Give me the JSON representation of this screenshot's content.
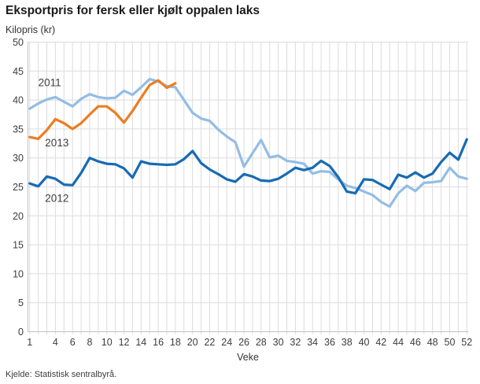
{
  "chart_data": {
    "type": "line",
    "title": "Eksportpris for fersk eller kjølt oppalen laks",
    "ylabel": "Kilopris (kr)",
    "xlabel": "Veke",
    "source": "Kjelde: Statistisk sentralbyrå.",
    "ylim": [
      0,
      50
    ],
    "yticks": [
      0,
      5,
      10,
      15,
      20,
      25,
      30,
      35,
      40,
      45,
      50
    ],
    "xlim": [
      1,
      52
    ],
    "xticks": [
      1,
      4,
      6,
      8,
      10,
      12,
      14,
      16,
      18,
      20,
      22,
      24,
      26,
      28,
      30,
      32,
      34,
      36,
      38,
      40,
      42,
      44,
      46,
      48,
      50,
      52
    ],
    "grid": true,
    "legend_position": "inline-labels",
    "colors": {
      "2011": "#94bde4",
      "2012": "#176bb4",
      "2013": "#ec7d23",
      "gridline": "#dcdcdc",
      "axis": "#c2c2c2",
      "tick_text": "#3d3d3d"
    },
    "series": [
      {
        "name": "2011",
        "color_key": "2011",
        "weeks_start": 1,
        "values": [
          38.5,
          39.4,
          40.1,
          40.5,
          39.7,
          38.9,
          40.2,
          41.0,
          40.5,
          40.3,
          40.4,
          41.6,
          40.9,
          42.2,
          43.6,
          43.2,
          42.4,
          42.2,
          40.0,
          37.8,
          36.8,
          36.4,
          34.9,
          33.7,
          32.7,
          28.5,
          30.8,
          33.1,
          30.1,
          30.4,
          29.5,
          29.3,
          29.0,
          27.3,
          27.7,
          27.6,
          26.3,
          25.2,
          24.8,
          24.2,
          23.6,
          22.4,
          21.6,
          23.9,
          25.2,
          24.3,
          25.7,
          25.8,
          26.0,
          28.3,
          26.8,
          26.4
        ]
      },
      {
        "name": "2012",
        "color_key": "2012",
        "weeks_start": 1,
        "values": [
          25.6,
          25.1,
          26.8,
          26.4,
          25.4,
          25.3,
          27.4,
          30.0,
          29.4,
          29.0,
          28.9,
          28.2,
          26.6,
          29.4,
          29.0,
          28.9,
          28.8,
          28.9,
          29.8,
          31.2,
          29.1,
          28.0,
          27.2,
          26.3,
          25.9,
          27.2,
          26.8,
          26.1,
          26.0,
          26.4,
          27.3,
          28.3,
          27.9,
          28.3,
          29.5,
          28.6,
          26.7,
          24.2,
          23.9,
          26.3,
          26.2,
          25.4,
          24.6,
          27.1,
          26.6,
          27.5,
          26.6,
          27.3,
          29.3,
          30.9,
          29.7,
          33.2
        ]
      },
      {
        "name": "2013",
        "color_key": "2013",
        "weeks_start": 1,
        "values": [
          33.6,
          33.3,
          34.8,
          36.7,
          36.0,
          35.0,
          36.0,
          37.5,
          38.9,
          38.9,
          37.8,
          36.1,
          38.1,
          40.4,
          42.6,
          43.4,
          42.1,
          42.9
        ]
      }
    ],
    "series_labels": [
      {
        "text": "2011",
        "week": 2.0,
        "value": 43.0
      },
      {
        "text": "2013",
        "week": 2.8,
        "value": 32.6
      },
      {
        "text": "2012",
        "week": 2.8,
        "value": 23.0
      }
    ]
  }
}
